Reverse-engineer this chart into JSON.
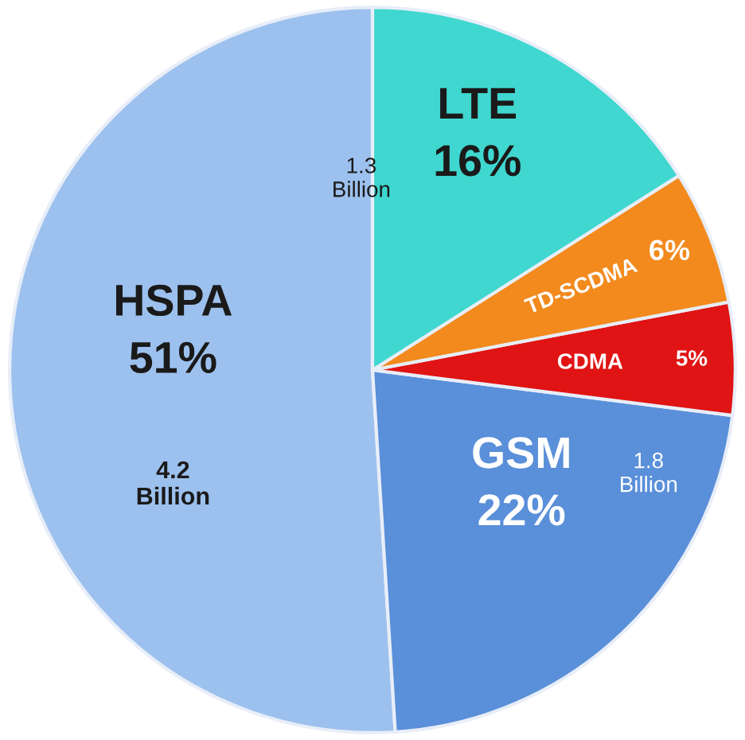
{
  "chart_data": {
    "type": "pie",
    "categories": [
      "HSPA",
      "GSM",
      "CDMA",
      "TD-SCDMA",
      "LTE"
    ],
    "values": [
      51,
      22,
      5,
      6,
      16
    ],
    "colors": [
      "#9dc1ee",
      "#5a8fd9",
      "#e01414",
      "#f28a1e",
      "#3fd7cf"
    ],
    "value_labels": [
      "51%",
      "22%",
      "5%",
      "6%",
      "16%"
    ],
    "annotations": [
      {
        "text": "4.2\nBillion",
        "x": "HSPA"
      },
      {
        "text": "1.8\nBillion",
        "x": "GSM"
      },
      {
        "text": "1.3\nBillion",
        "x": "LTE"
      }
    ],
    "legend": false
  }
}
